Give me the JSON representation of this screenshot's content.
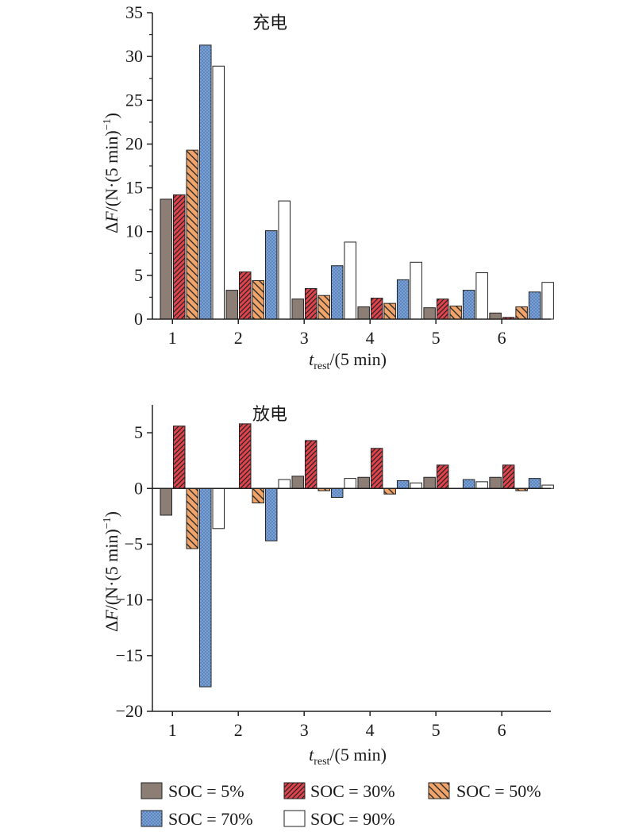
{
  "chart_data": [
    {
      "type": "bar",
      "title": "充电",
      "xlabel": {
        "var": "t",
        "sub": "rest",
        "rest": "/(5 min)"
      },
      "ylabel": {
        "pre": "Δ",
        "var": "F",
        "rest": "/(N·(5 min)",
        "sup": "−1",
        "close": ")"
      },
      "categories": [
        "1",
        "2",
        "3",
        "4",
        "5",
        "6"
      ],
      "ylim": [
        0,
        35
      ],
      "yticks": [
        0,
        5,
        10,
        15,
        20,
        25,
        30,
        35
      ],
      "ytick_labels": [
        "0",
        "5",
        "10",
        "15",
        "20",
        "25",
        "30",
        "35"
      ],
      "series": [
        {
          "name": "SOC = 5%",
          "values": [
            13.7,
            3.3,
            2.3,
            1.4,
            1.3,
            0.7
          ]
        },
        {
          "name": "SOC = 30%",
          "values": [
            14.2,
            5.4,
            3.5,
            2.4,
            2.3,
            0.2
          ]
        },
        {
          "name": "SOC = 50%",
          "values": [
            19.3,
            4.4,
            2.7,
            1.8,
            1.5,
            1.4
          ]
        },
        {
          "name": "SOC = 70%",
          "values": [
            31.3,
            10.1,
            6.1,
            4.5,
            3.3,
            3.1
          ]
        },
        {
          "name": "SOC = 90%",
          "values": [
            28.9,
            13.5,
            8.8,
            6.5,
            5.3,
            4.2
          ]
        }
      ]
    },
    {
      "type": "bar",
      "title": "放电",
      "xlabel": {
        "var": "t",
        "sub": "rest",
        "rest": "/(5 min)"
      },
      "ylabel": {
        "pre": "Δ",
        "var": "F",
        "rest": "/(N·(5 min)",
        "sup": "−1",
        "close": ")"
      },
      "categories": [
        "1",
        "2",
        "3",
        "4",
        "5",
        "6"
      ],
      "ylim": [
        -20,
        7.5
      ],
      "yticks": [
        -20,
        -15,
        -10,
        -5,
        0,
        5
      ],
      "ytick_labels": [
        "−20",
        "−15",
        "−10",
        "−5",
        "0",
        "5"
      ],
      "series": [
        {
          "name": "SOC = 5%",
          "values": [
            -2.4,
            0.0,
            1.1,
            1.0,
            1.0,
            1.0
          ]
        },
        {
          "name": "SOC = 30%",
          "values": [
            5.6,
            5.8,
            4.3,
            3.6,
            2.1,
            2.1
          ]
        },
        {
          "name": "SOC = 50%",
          "values": [
            -5.4,
            -1.3,
            -0.2,
            -0.5,
            0.0,
            -0.2
          ]
        },
        {
          "name": "SOC = 70%",
          "values": [
            -17.8,
            -4.7,
            -0.8,
            0.7,
            0.8,
            0.9
          ]
        },
        {
          "name": "SOC = 90%",
          "values": [
            -3.6,
            0.8,
            0.9,
            0.5,
            0.6,
            0.3
          ]
        }
      ]
    }
  ],
  "legend": [
    {
      "label": "SOC = 5%",
      "color": "#8c7d75",
      "pattern": "none"
    },
    {
      "label": "SOC = 30%",
      "color": "#e0434b",
      "pattern": "hatch-dense"
    },
    {
      "label": "SOC = 50%",
      "color": "#f0a46a",
      "pattern": "hatch-sparse"
    },
    {
      "label": "SOC = 70%",
      "color": "#5b86c1",
      "pattern": "dots"
    },
    {
      "label": "SOC = 90%",
      "color": "#ffffff",
      "pattern": "none"
    }
  ]
}
